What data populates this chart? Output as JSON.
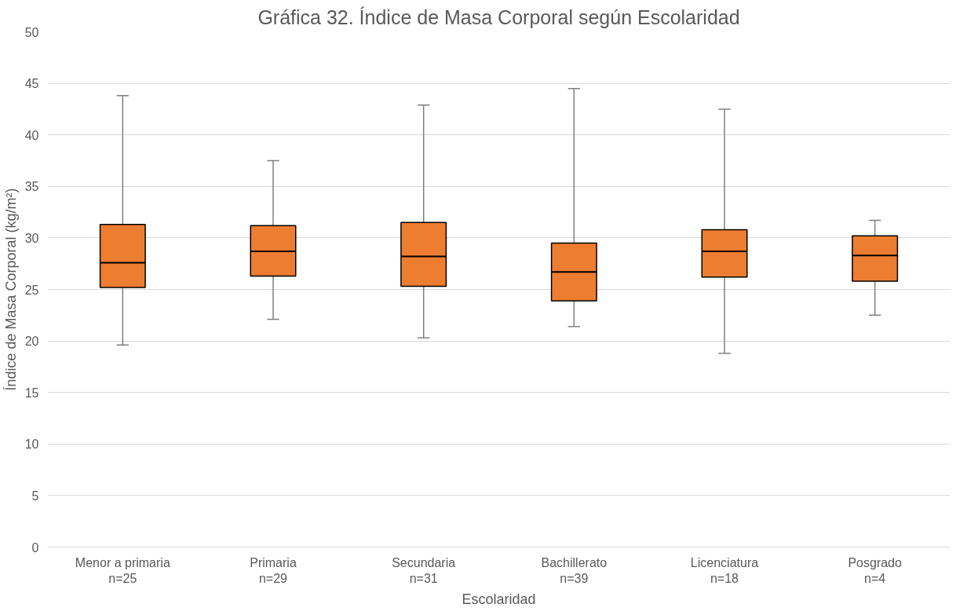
{
  "chart_data": {
    "type": "box",
    "title": "Gráfica 32. Índice de Masa Corporal según Escolaridad",
    "xlabel": "Escolaridad",
    "ylabel": "Índice de Masa Corporal (kg/m²)",
    "categories": [
      "Menor a primaria\nn=25",
      "Primaria\nn=29",
      "Secundaria\nn=31",
      "Bachillerato\nn=39",
      "Licenciatura\nn=18",
      "Posgrado\nn=4"
    ],
    "color": "#ed7d31",
    "boxes": [
      {
        "low": 19.6,
        "q1": 25.2,
        "median": 27.6,
        "q3": 31.3,
        "high": 43.8
      },
      {
        "low": 22.1,
        "q1": 26.3,
        "median": 28.7,
        "q3": 31.2,
        "high": 37.5
      },
      {
        "low": 20.3,
        "q1": 25.3,
        "median": 28.2,
        "q3": 31.5,
        "high": 42.9
      },
      {
        "low": 21.4,
        "q1": 23.9,
        "median": 26.7,
        "q3": 29.5,
        "high": 44.5
      },
      {
        "low": 18.8,
        "q1": 26.2,
        "median": 28.7,
        "q3": 30.8,
        "high": 42.5
      },
      {
        "low": 22.5,
        "q1": 25.8,
        "median": 28.3,
        "q3": 30.2,
        "high": 31.7
      }
    ],
    "ylim": [
      0,
      50
    ],
    "yticks": [
      0,
      5,
      10,
      15,
      20,
      25,
      30,
      35,
      40,
      45,
      50
    ],
    "grid": "y"
  }
}
